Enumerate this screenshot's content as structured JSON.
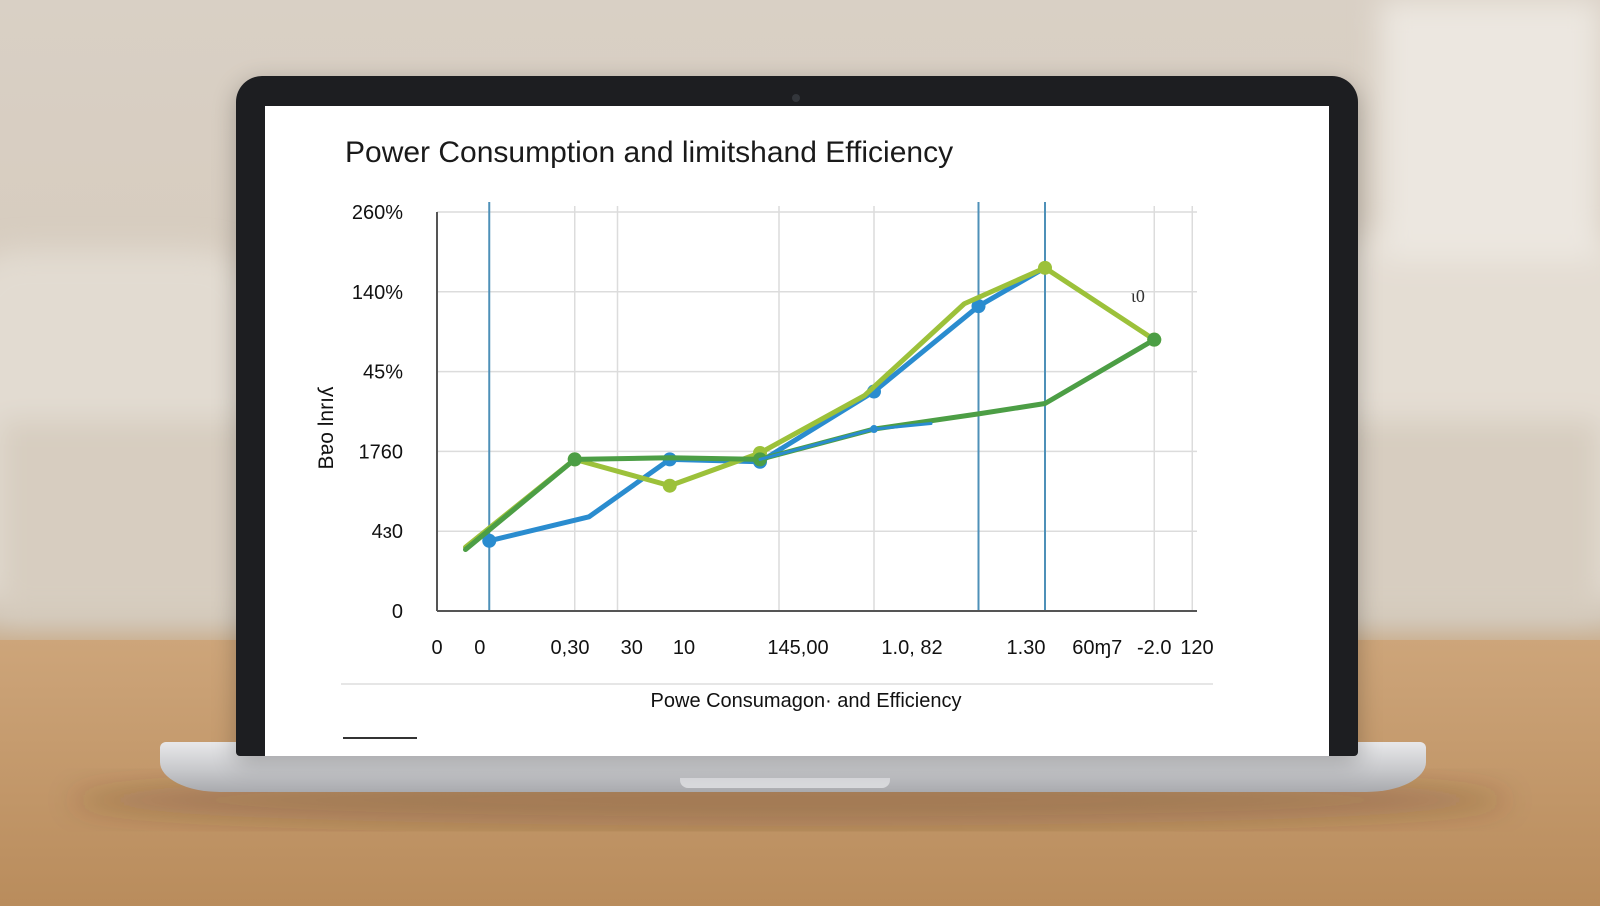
{
  "colors": {
    "accent_blue": "#2a8ccf",
    "accent_lime": "#9cc13a",
    "accent_green": "#4c9e45",
    "guide_blue": "#4e90b8",
    "grid": "#dcdcdc",
    "axis": "#555555"
  },
  "chart_data": {
    "type": "line",
    "title": "Power Consumption and limitshand Efficiency",
    "ylabel": "Bɐo lnrıʎ",
    "caption": "Powe Consumagon· and Efficiency",
    "annotation": "ɩ0",
    "y_tick_labels": [
      "0",
      "4ɜ0",
      "1760",
      "45%",
      "140%",
      "260%"
    ],
    "x_tick_labels": [
      "0",
      "0",
      "0,30",
      "30",
      "10",
      "145,00",
      "1.0, 82",
      "1.30",
      "60ɱ7",
      "-2.0",
      "120"
    ],
    "ylim": [
      0,
      5
    ],
    "grid": true,
    "series": [
      {
        "color": "#2a8ccf",
        "marker_points": [
          true,
          false,
          true,
          true,
          true,
          true,
          false
        ],
        "x": [
          0.55,
          1.6,
          2.45,
          3.4,
          4.6,
          5.7,
          6.4
        ],
        "y": [
          0.88,
          1.18,
          1.9,
          1.87,
          2.75,
          3.82,
          4.3
        ]
      },
      {
        "color": "#9cc13a",
        "marker_points": [
          false,
          true,
          true,
          true,
          false,
          false,
          true,
          true
        ],
        "x": [
          0.3,
          1.45,
          2.45,
          3.4,
          4.5,
          5.55,
          6.4,
          7.55
        ],
        "y": [
          0.8,
          1.9,
          1.57,
          1.98,
          2.7,
          3.85,
          4.3,
          3.4
        ]
      },
      {
        "color": "#4c9e45",
        "marker_points": [
          false,
          true,
          false,
          true,
          false,
          false,
          false,
          true
        ],
        "x": [
          0.3,
          1.45,
          2.45,
          3.4,
          4.6,
          5.7,
          6.4,
          7.55
        ],
        "y": [
          0.77,
          1.9,
          1.92,
          1.9,
          2.28,
          2.47,
          2.6,
          3.4
        ]
      },
      {
        "color": "#2a8ccf",
        "marker_points": [
          false,
          true,
          false
        ],
        "x": [
          3.4,
          4.6,
          5.2
        ],
        "y": [
          1.9,
          2.28,
          2.35
        ]
      }
    ]
  }
}
